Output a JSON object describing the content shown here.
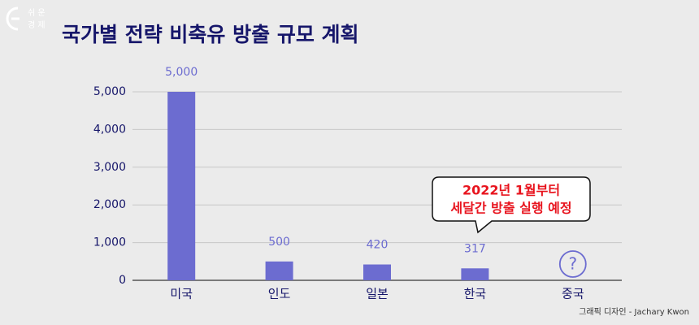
{
  "chart_data": {
    "type": "bar",
    "title": "국가별 전략 비축유 방출 규모 계획",
    "logo_text": [
      "쉬 운",
      "경 제"
    ],
    "categories": [
      "미국",
      "인도",
      "일본",
      "한국",
      "중국"
    ],
    "values": [
      5000,
      500,
      420,
      317,
      null
    ],
    "value_labels": [
      "5,000",
      "500",
      "420",
      "317",
      "?"
    ],
    "color": "#6c6cd0",
    "ylim": [
      0,
      5000
    ],
    "yticks": [
      0,
      {
        "value": 1000,
        "label": "1,000"
      },
      {
        "value": 2000,
        "label": "2,000"
      },
      {
        "value": 3000,
        "label": "3,000"
      },
      {
        "value": 4000,
        "label": "4,000"
      },
      {
        "value": 5000,
        "label": "5,000"
      }
    ],
    "grid": true,
    "annotation": [
      "2022년 1월부터",
      "세달간 방출 실행 예정"
    ],
    "credit": "그래픽 디자인 - Jachary Kwon"
  }
}
